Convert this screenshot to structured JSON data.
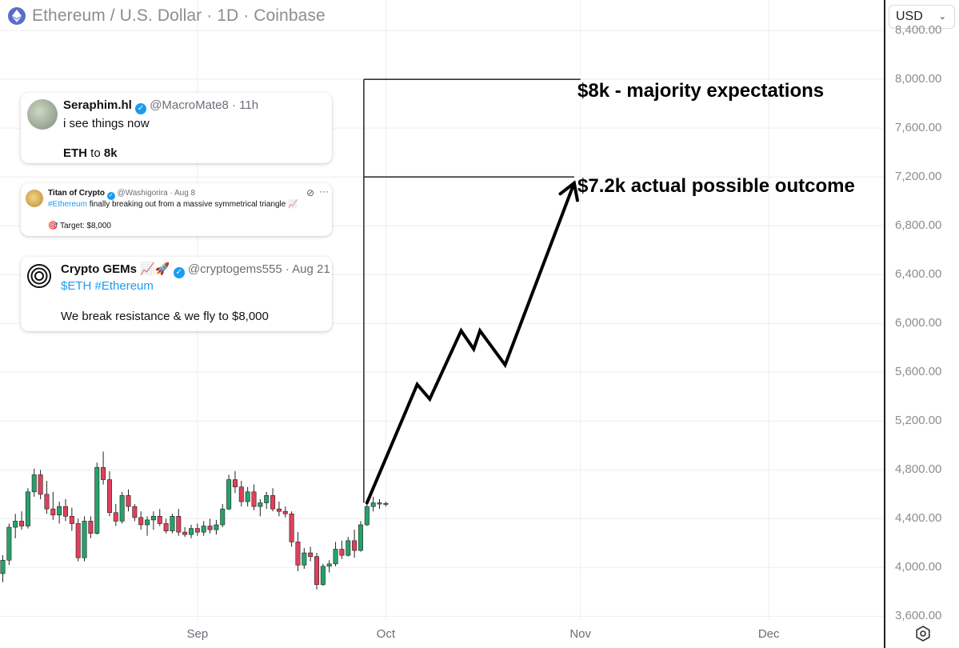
{
  "header": {
    "title": "Ethereum / U.S. Dollar · 1D · Coinbase"
  },
  "currency_select": {
    "value": "USD"
  },
  "icons": {
    "eth": "ethereum-logo-icon",
    "settings": "gear-icon",
    "dropdown": "chevron-down-icon"
  },
  "colors": {
    "up": "#26a269",
    "down": "#e0405a",
    "grid": "#eeeeee",
    "accent_blue": "#1d9bf0"
  },
  "tweets": [
    {
      "name": "Seraphim.hl",
      "handle": "@MacroMate8 · 11h",
      "line1": "i see things now",
      "line2_a": "ETH",
      "line2_b": " to ",
      "line2_c": "8k"
    },
    {
      "name": "Titan of Crypto",
      "handle": "@Washigorira · Aug 8",
      "tag": "#Ethereum",
      "text": " finally breaking out from a massive symmetrical triangle 📈",
      "target": "🎯 Target: $8,000"
    },
    {
      "name": "Crypto GEMs 📈🚀",
      "handle": "@cryptogems555 · Aug 21",
      "tags": "$ETH #Ethereum",
      "text": "We break resistance & we fly to $8,000"
    }
  ],
  "annotations": {
    "majority": "$8k - majority expectations",
    "actual": "$7.2k actual possible outcome"
  },
  "chart_data": {
    "type": "candlestick",
    "title": "Ethereum / U.S. Dollar · 1D · Coinbase",
    "ylim": [
      3570,
      8650
    ],
    "y_ticks": [
      "3,600.00",
      "4,000.00",
      "4,400.00",
      "4,800.00",
      "5,200.00",
      "5,600.00",
      "6,000.00",
      "6,400.00",
      "6,800.00",
      "7,200.00",
      "7,600.00",
      "8,000.00",
      "8,400.00"
    ],
    "y_tick_values": [
      3600,
      4000,
      4400,
      4800,
      5200,
      5600,
      6000,
      6400,
      6800,
      7200,
      7600,
      8000,
      8400
    ],
    "x_ticks": [
      {
        "label": "Sep",
        "day": 31
      },
      {
        "label": "Oct",
        "day": 61
      },
      {
        "label": "Nov",
        "day": 92
      },
      {
        "label": "Dec",
        "day": 122
      }
    ],
    "grid": true,
    "candles": [
      {
        "o": 3950,
        "h": 4100,
        "l": 3880,
        "c": 4060
      },
      {
        "o": 4060,
        "h": 4360,
        "l": 4020,
        "c": 4330
      },
      {
        "o": 4330,
        "h": 4440,
        "l": 4240,
        "c": 4380
      },
      {
        "o": 4380,
        "h": 4460,
        "l": 4310,
        "c": 4340
      },
      {
        "o": 4340,
        "h": 4650,
        "l": 4320,
        "c": 4620
      },
      {
        "o": 4620,
        "h": 4810,
        "l": 4580,
        "c": 4760
      },
      {
        "o": 4760,
        "h": 4800,
        "l": 4560,
        "c": 4600
      },
      {
        "o": 4600,
        "h": 4710,
        "l": 4440,
        "c": 4480
      },
      {
        "o": 4480,
        "h": 4620,
        "l": 4390,
        "c": 4430
      },
      {
        "o": 4430,
        "h": 4540,
        "l": 4360,
        "c": 4500
      },
      {
        "o": 4500,
        "h": 4560,
        "l": 4380,
        "c": 4420
      },
      {
        "o": 4420,
        "h": 4490,
        "l": 4300,
        "c": 4360
      },
      {
        "o": 4360,
        "h": 4400,
        "l": 4050,
        "c": 4080
      },
      {
        "o": 4080,
        "h": 4420,
        "l": 4050,
        "c": 4380
      },
      {
        "o": 4380,
        "h": 4420,
        "l": 4240,
        "c": 4280
      },
      {
        "o": 4280,
        "h": 4860,
        "l": 4270,
        "c": 4820
      },
      {
        "o": 4820,
        "h": 4950,
        "l": 4680,
        "c": 4720
      },
      {
        "o": 4720,
        "h": 4790,
        "l": 4420,
        "c": 4450
      },
      {
        "o": 4450,
        "h": 4520,
        "l": 4340,
        "c": 4380
      },
      {
        "o": 4380,
        "h": 4620,
        "l": 4360,
        "c": 4590
      },
      {
        "o": 4590,
        "h": 4640,
        "l": 4460,
        "c": 4500
      },
      {
        "o": 4500,
        "h": 4520,
        "l": 4380,
        "c": 4410
      },
      {
        "o": 4410,
        "h": 4460,
        "l": 4310,
        "c": 4350
      },
      {
        "o": 4350,
        "h": 4420,
        "l": 4260,
        "c": 4390
      },
      {
        "o": 4390,
        "h": 4460,
        "l": 4310,
        "c": 4420
      },
      {
        "o": 4420,
        "h": 4480,
        "l": 4340,
        "c": 4360
      },
      {
        "o": 4360,
        "h": 4400,
        "l": 4280,
        "c": 4300
      },
      {
        "o": 4300,
        "h": 4440,
        "l": 4280,
        "c": 4420
      },
      {
        "o": 4420,
        "h": 4480,
        "l": 4260,
        "c": 4290
      },
      {
        "o": 4290,
        "h": 4330,
        "l": 4250,
        "c": 4270
      },
      {
        "o": 4270,
        "h": 4350,
        "l": 4240,
        "c": 4320
      },
      {
        "o": 4320,
        "h": 4360,
        "l": 4260,
        "c": 4290
      },
      {
        "o": 4290,
        "h": 4380,
        "l": 4260,
        "c": 4340
      },
      {
        "o": 4340,
        "h": 4400,
        "l": 4280,
        "c": 4310
      },
      {
        "o": 4310,
        "h": 4390,
        "l": 4270,
        "c": 4350
      },
      {
        "o": 4350,
        "h": 4520,
        "l": 4330,
        "c": 4480
      },
      {
        "o": 4480,
        "h": 4760,
        "l": 4470,
        "c": 4720
      },
      {
        "o": 4720,
        "h": 4790,
        "l": 4610,
        "c": 4660
      },
      {
        "o": 4660,
        "h": 4710,
        "l": 4500,
        "c": 4540
      },
      {
        "o": 4540,
        "h": 4660,
        "l": 4500,
        "c": 4620
      },
      {
        "o": 4620,
        "h": 4680,
        "l": 4470,
        "c": 4500
      },
      {
        "o": 4500,
        "h": 4560,
        "l": 4420,
        "c": 4530
      },
      {
        "o": 4530,
        "h": 4620,
        "l": 4480,
        "c": 4590
      },
      {
        "o": 4590,
        "h": 4650,
        "l": 4460,
        "c": 4480
      },
      {
        "o": 4480,
        "h": 4540,
        "l": 4420,
        "c": 4460
      },
      {
        "o": 4460,
        "h": 4500,
        "l": 4410,
        "c": 4440
      },
      {
        "o": 4440,
        "h": 4460,
        "l": 4170,
        "c": 4210
      },
      {
        "o": 4210,
        "h": 4290,
        "l": 3970,
        "c": 4020
      },
      {
        "o": 4020,
        "h": 4160,
        "l": 3990,
        "c": 4120
      },
      {
        "o": 4120,
        "h": 4170,
        "l": 4050,
        "c": 4090
      },
      {
        "o": 4090,
        "h": 4120,
        "l": 3820,
        "c": 3860
      },
      {
        "o": 3860,
        "h": 4030,
        "l": 3850,
        "c": 4010
      },
      {
        "o": 4010,
        "h": 4060,
        "l": 3960,
        "c": 4030
      },
      {
        "o": 4030,
        "h": 4210,
        "l": 4010,
        "c": 4150
      },
      {
        "o": 4150,
        "h": 4220,
        "l": 4070,
        "c": 4100
      },
      {
        "o": 4100,
        "h": 4250,
        "l": 4090,
        "c": 4220
      },
      {
        "o": 4220,
        "h": 4310,
        "l": 4080,
        "c": 4140
      },
      {
        "o": 4140,
        "h": 4380,
        "l": 4130,
        "c": 4350
      },
      {
        "o": 4350,
        "h": 4530,
        "l": 4340,
        "c": 4500
      },
      {
        "o": 4500,
        "h": 4580,
        "l": 4460,
        "c": 4530
      },
      {
        "o": 4530,
        "h": 4560,
        "l": 4480,
        "c": 4520
      },
      {
        "o": 4520,
        "h": 4540,
        "l": 4500,
        "c": 4525
      }
    ],
    "projection_path": [
      [
        58,
        4530
      ],
      [
        66,
        5500
      ],
      [
        68,
        5380
      ],
      [
        73,
        5940
      ],
      [
        75,
        5790
      ],
      [
        76,
        5940
      ],
      [
        80,
        5660
      ],
      [
        91,
        7150
      ]
    ],
    "levels": [
      {
        "value": 8000,
        "day_from": 57.5,
        "day_to": 92
      },
      {
        "value": 7200,
        "day_from": 57.5,
        "day_to": 91
      }
    ],
    "level_connector": {
      "day": 57.5,
      "from": 4530,
      "to": 8000
    }
  }
}
